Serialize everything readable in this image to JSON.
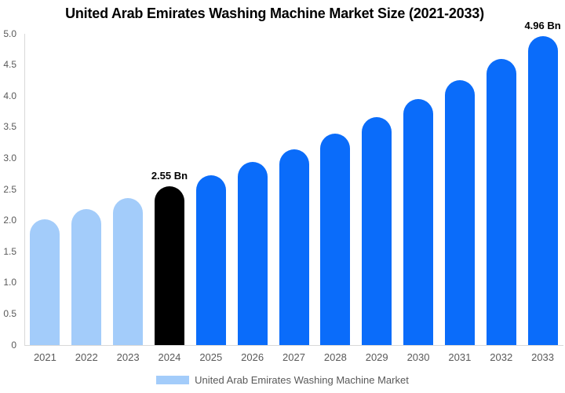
{
  "title": "United Arab Emirates Washing Machine Market Size (2021-2033)",
  "legend": {
    "label": "United Arab Emirates Washing Machine Market",
    "swatch_color": "#A3CCFA"
  },
  "colors": {
    "historic_bar": "#A3CCFA",
    "base_year_bar": "#000000",
    "forecast_bar": "#0A6CFA",
    "axis_line": "#D9D9D9",
    "axis_text": "#595959",
    "title_text": "#000000",
    "background": "#FFFFFF"
  },
  "chart_data": {
    "type": "bar",
    "title": "United Arab Emirates Washing Machine Market Size (2021-2033)",
    "xlabel": "",
    "ylabel": "",
    "categories": [
      "2021",
      "2022",
      "2023",
      "2024",
      "2025",
      "2026",
      "2027",
      "2028",
      "2029",
      "2030",
      "2031",
      "2032",
      "2033"
    ],
    "values": [
      2.02,
      2.19,
      2.36,
      2.55,
      2.73,
      2.94,
      3.15,
      3.4,
      3.66,
      3.95,
      4.26,
      4.59,
      4.96
    ],
    "bar_colors": [
      "#A3CCFA",
      "#A3CCFA",
      "#A3CCFA",
      "#000000",
      "#0A6CFA",
      "#0A6CFA",
      "#0A6CFA",
      "#0A6CFA",
      "#0A6CFA",
      "#0A6CFA",
      "#0A6CFA",
      "#0A6CFA",
      "#0A6CFA"
    ],
    "y_ticks": [
      {
        "label": "5.0",
        "value": 5.0
      },
      {
        "label": "4.5",
        "value": 4.5
      },
      {
        "label": "4.0",
        "value": 4.0
      },
      {
        "label": "3.5",
        "value": 3.5
      },
      {
        "label": "3.0",
        "value": 3.0
      },
      {
        "label": "2.5",
        "value": 2.5
      },
      {
        "label": "2.0",
        "value": 2.0
      },
      {
        "label": "1.5",
        "value": 1.5
      },
      {
        "label": "1.0",
        "value": 1.0
      },
      {
        "label": "0.5",
        "value": 0.5
      },
      {
        "label": "0",
        "value": 0
      }
    ],
    "ylim": [
      0,
      5
    ],
    "grid": false,
    "legend_position": "bottom",
    "annotations": [
      {
        "category": "2024",
        "text": "2.55 Bn"
      },
      {
        "category": "2033",
        "text": "4.96 Bn"
      }
    ]
  }
}
